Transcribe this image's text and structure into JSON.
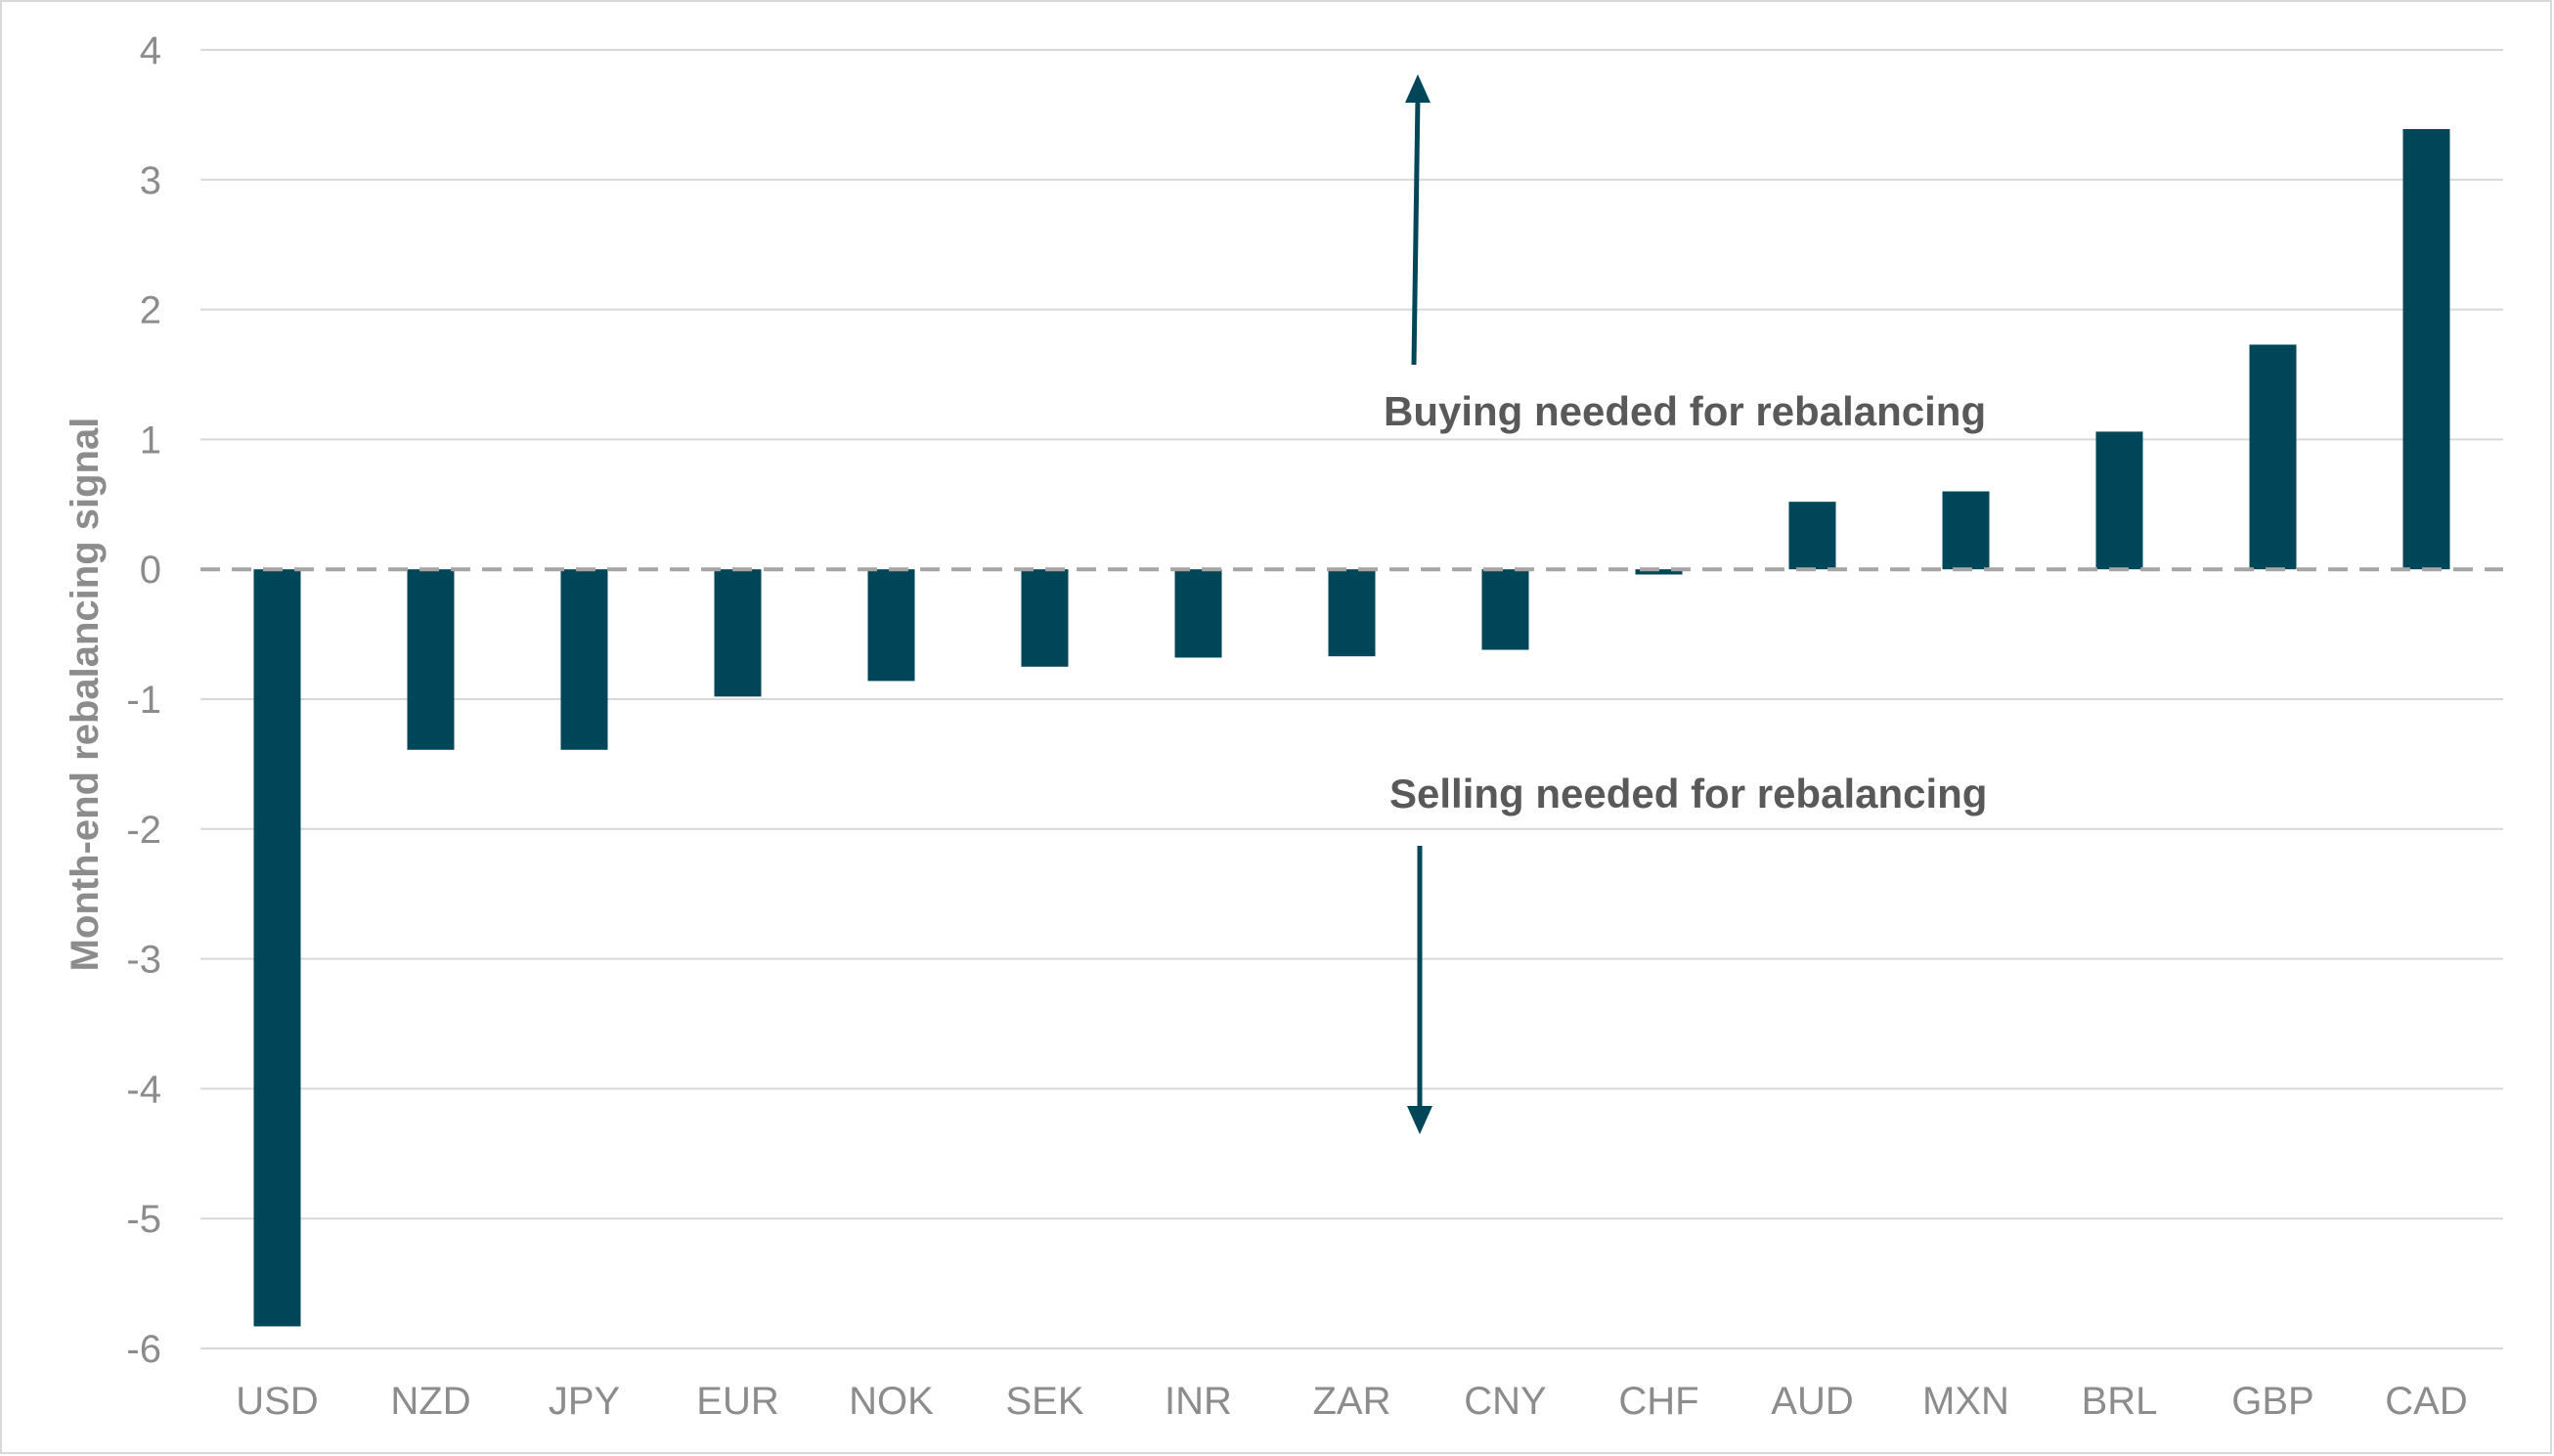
{
  "chart_data": {
    "type": "bar",
    "ylabel": "Month-end rebalancing signal",
    "xlabel": "",
    "ylim": [
      -6,
      4
    ],
    "yticks": [
      4,
      3,
      2,
      1,
      0,
      -1,
      -2,
      -3,
      -4,
      -5,
      -6
    ],
    "grid": true,
    "legend": "none",
    "bar_color": "#004659",
    "categories": [
      "USD",
      "NZD",
      "JPY",
      "EUR",
      "NOK",
      "SEK",
      "INR",
      "ZAR",
      "CNY",
      "CHF",
      "AUD",
      "MXN",
      "BRL",
      "GBP",
      "CAD"
    ],
    "values": [
      -5.83,
      -1.39,
      -1.39,
      -0.98,
      -0.86,
      -0.75,
      -0.68,
      -0.67,
      -0.62,
      -0.04,
      0.52,
      0.6,
      1.06,
      1.73,
      3.39
    ],
    "annotations": [
      {
        "text": "Buying needed for rebalancing",
        "arrow": "up"
      },
      {
        "text": "Selling needed for rebalancing",
        "arrow": "down"
      }
    ]
  }
}
